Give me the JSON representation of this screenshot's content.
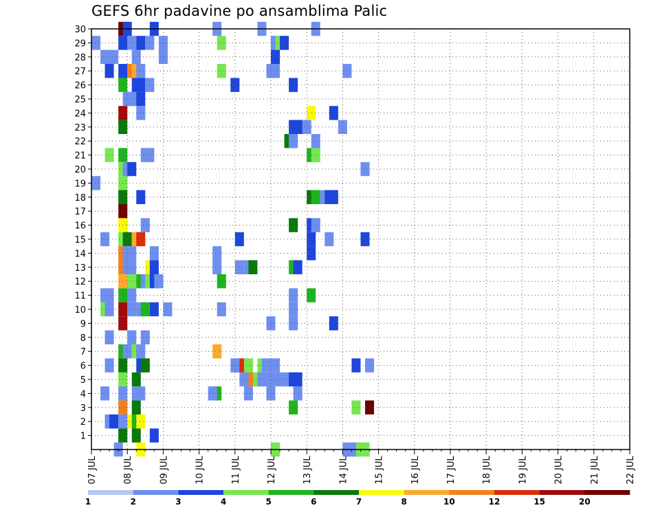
{
  "chart_data": {
    "type": "heatmap",
    "title": "GEFS 6hr padavine po ansamblima Palic",
    "xlabel": "",
    "ylabel": "",
    "x_ticks": [
      "07 JUL",
      "08 JUL",
      "09 JUL",
      "10 JUL",
      "11 JUL",
      "12 JUL",
      "13 JUL",
      "14 JUL",
      "15 JUL",
      "16 JUL",
      "17 JUL",
      "18 JUL",
      "19 JUL",
      "20 JUL",
      "21 JUL",
      "22 JUL"
    ],
    "y_ticks": [
      1,
      2,
      3,
      4,
      5,
      6,
      7,
      8,
      9,
      10,
      11,
      12,
      13,
      14,
      15,
      16,
      17,
      18,
      19,
      20,
      21,
      22,
      23,
      24,
      25,
      26,
      27,
      28,
      29,
      30
    ],
    "x_unit": "6-hour step (4 steps per day, step 0 = 07 JUL 00Z)",
    "y_unit": "ensemble member",
    "grid": true,
    "colorbar": {
      "labels": [
        "1",
        "2",
        "3",
        "4",
        "5",
        "6",
        "7",
        "8",
        "10",
        "12",
        "15",
        "20"
      ],
      "colors": [
        "#b4c8f5",
        "#6e8ff0",
        "#1e46dc",
        "#78e650",
        "#1eb41e",
        "#0a780a",
        "#fafa0a",
        "#faaa2d",
        "#f0821e",
        "#dc2d0a",
        "#a00a0a",
        "#6e0000"
      ]
    },
    "cells": [
      [
        0.5,
        29,
        1
      ],
      [
        0.5,
        19,
        1
      ],
      [
        1.5,
        28,
        1
      ],
      [
        1.5,
        15,
        1
      ],
      [
        1.5,
        11,
        1
      ],
      [
        1.5,
        10,
        3
      ],
      [
        1.5,
        4,
        1
      ],
      [
        2,
        27,
        2
      ],
      [
        2,
        21,
        3
      ],
      [
        2,
        11,
        1
      ],
      [
        2,
        10,
        1
      ],
      [
        2,
        8,
        1
      ],
      [
        2,
        6,
        1
      ],
      [
        2,
        2,
        1
      ],
      [
        2.5,
        28,
        1
      ],
      [
        2.5,
        2,
        2
      ],
      [
        3,
        0,
        1
      ],
      [
        3.5,
        30,
        11
      ],
      [
        3.5,
        29,
        2
      ],
      [
        3.5,
        27,
        2
      ],
      [
        3.5,
        26,
        4
      ],
      [
        3.5,
        24,
        10
      ],
      [
        3.5,
        23,
        5
      ],
      [
        3.5,
        21,
        4
      ],
      [
        3.5,
        20,
        3
      ],
      [
        3.5,
        19,
        3
      ],
      [
        3.5,
        18,
        5
      ],
      [
        3.5,
        17,
        11
      ],
      [
        3.5,
        16,
        6
      ],
      [
        3.5,
        15,
        3
      ],
      [
        3.5,
        14,
        8
      ],
      [
        3.5,
        13,
        8
      ],
      [
        3.5,
        12,
        7
      ],
      [
        3.5,
        11,
        4
      ],
      [
        3.5,
        10,
        10
      ],
      [
        3.5,
        9,
        10
      ],
      [
        3.5,
        7,
        4
      ],
      [
        3.5,
        6,
        5
      ],
      [
        3.5,
        5,
        3
      ],
      [
        3.5,
        4,
        1
      ],
      [
        3.5,
        3,
        8
      ],
      [
        3.5,
        2,
        1
      ],
      [
        3.5,
        1,
        5
      ],
      [
        4,
        30,
        2
      ],
      [
        4,
        25,
        1
      ],
      [
        4,
        20,
        1
      ],
      [
        4,
        15,
        5
      ],
      [
        4,
        14,
        1
      ],
      [
        4,
        13,
        1
      ],
      [
        4,
        7,
        1
      ],
      [
        4.5,
        29,
        1
      ],
      [
        4.5,
        27,
        8
      ],
      [
        4.5,
        25,
        1
      ],
      [
        4.5,
        20,
        2
      ],
      [
        4.5,
        14,
        1
      ],
      [
        4.5,
        13,
        1
      ],
      [
        4.5,
        12,
        3
      ],
      [
        4.5,
        11,
        1
      ],
      [
        4.5,
        10,
        1
      ],
      [
        4.5,
        8,
        1
      ],
      [
        4.5,
        2,
        6
      ],
      [
        5,
        28,
        1
      ],
      [
        5,
        27,
        7
      ],
      [
        5,
        26,
        2
      ],
      [
        5,
        25,
        1
      ],
      [
        5,
        15,
        7
      ],
      [
        5,
        7,
        3
      ],
      [
        5,
        5,
        5
      ],
      [
        5,
        4,
        1
      ],
      [
        5,
        3,
        5
      ],
      [
        5,
        2,
        4
      ],
      [
        5,
        1,
        5
      ],
      [
        5.5,
        29,
        2
      ],
      [
        5.5,
        27,
        1
      ],
      [
        5.5,
        26,
        2
      ],
      [
        5.5,
        25,
        2
      ],
      [
        5.5,
        24,
        1
      ],
      [
        5.5,
        18,
        2
      ],
      [
        5.5,
        15,
        9
      ],
      [
        5.5,
        12,
        4
      ],
      [
        5.5,
        10,
        1
      ],
      [
        5.5,
        7,
        1
      ],
      [
        5.5,
        6,
        2
      ],
      [
        5.5,
        4,
        1
      ],
      [
        5.5,
        2,
        6
      ],
      [
        5.5,
        0,
        6
      ],
      [
        6,
        21,
        1
      ],
      [
        6,
        16,
        1
      ],
      [
        6,
        12,
        1
      ],
      [
        6,
        10,
        4
      ],
      [
        6,
        8,
        1
      ],
      [
        6,
        6,
        5
      ],
      [
        6.5,
        29,
        1
      ],
      [
        6.5,
        26,
        1
      ],
      [
        6.5,
        21,
        1
      ],
      [
        6.5,
        13,
        6
      ],
      [
        6.5,
        12,
        3
      ],
      [
        7,
        14,
        1
      ],
      [
        7,
        13,
        2
      ],
      [
        7,
        12,
        2
      ],
      [
        7,
        10,
        2
      ],
      [
        7,
        1,
        2
      ],
      [
        7,
        30,
        2
      ],
      [
        7.5,
        12,
        1
      ],
      [
        8,
        29,
        1
      ],
      [
        8,
        28,
        1
      ],
      [
        8.5,
        10,
        1
      ],
      [
        14,
        30,
        1
      ],
      [
        14,
        14,
        1
      ],
      [
        14,
        13,
        1
      ],
      [
        14,
        7,
        7
      ],
      [
        14,
        4,
        4
      ],
      [
        13.5,
        4,
        1
      ],
      [
        14.5,
        29,
        3
      ],
      [
        14.5,
        27,
        3
      ],
      [
        14.5,
        12,
        4
      ],
      [
        14.5,
        10,
        1
      ],
      [
        16,
        26,
        2
      ],
      [
        16,
        6,
        1
      ],
      [
        16.5,
        15,
        2
      ],
      [
        16.5,
        13,
        1
      ],
      [
        16.5,
        6,
        1
      ],
      [
        17,
        6,
        9
      ],
      [
        17,
        5,
        1
      ],
      [
        17.5,
        13,
        1
      ],
      [
        17.5,
        6,
        3
      ],
      [
        17.5,
        4,
        1
      ],
      [
        17.5,
        5,
        1
      ],
      [
        18,
        13,
        5
      ],
      [
        18,
        5,
        8
      ],
      [
        18.5,
        5,
        3
      ],
      [
        19,
        30,
        1
      ],
      [
        19,
        6,
        3
      ],
      [
        19,
        5,
        1
      ],
      [
        19.5,
        6,
        1
      ],
      [
        20,
        27,
        1
      ],
      [
        20,
        9,
        1
      ],
      [
        20,
        5,
        1
      ],
      [
        20,
        4,
        1
      ],
      [
        20.5,
        29,
        1
      ],
      [
        20.5,
        28,
        2
      ],
      [
        20.5,
        27,
        1
      ],
      [
        20.5,
        6,
        1
      ],
      [
        20.5,
        5,
        1
      ],
      [
        20.5,
        0,
        3
      ],
      [
        21,
        29,
        3
      ],
      [
        21.5,
        29,
        2
      ],
      [
        21.5,
        5,
        1
      ],
      [
        22,
        22,
        5
      ],
      [
        22,
        5,
        1
      ],
      [
        22.5,
        26,
        2
      ],
      [
        22.5,
        23,
        2
      ],
      [
        22.5,
        22,
        1
      ],
      [
        22.5,
        16,
        5
      ],
      [
        22.5,
        13,
        4
      ],
      [
        22.5,
        11,
        1
      ],
      [
        22.5,
        10,
        1
      ],
      [
        22.5,
        9,
        1
      ],
      [
        22.5,
        5,
        2
      ],
      [
        22.5,
        3,
        4
      ],
      [
        23,
        23,
        2
      ],
      [
        23,
        13,
        2
      ],
      [
        23,
        4,
        1
      ],
      [
        23,
        5,
        2
      ],
      [
        23.5,
        23,
        2
      ],
      [
        24,
        23,
        1
      ],
      [
        24.5,
        24,
        6
      ],
      [
        24.5,
        21,
        4
      ],
      [
        24.5,
        18,
        5
      ],
      [
        24.5,
        16,
        2
      ],
      [
        24.5,
        15,
        2
      ],
      [
        24.5,
        14,
        2
      ],
      [
        24.5,
        11,
        4
      ],
      [
        25,
        30,
        1
      ],
      [
        25,
        22,
        1
      ],
      [
        25,
        21,
        3
      ],
      [
        25,
        18,
        4
      ],
      [
        25,
        16,
        1
      ],
      [
        26,
        18,
        1
      ],
      [
        26.5,
        18,
        2
      ],
      [
        26.5,
        15,
        1
      ],
      [
        27,
        24,
        2
      ],
      [
        27,
        18,
        2
      ],
      [
        27,
        9,
        2
      ],
      [
        28,
        23,
        1
      ],
      [
        28.5,
        27,
        1
      ],
      [
        28.5,
        0,
        1
      ],
      [
        29,
        0,
        1
      ],
      [
        29.5,
        6,
        2
      ],
      [
        29.5,
        3,
        3
      ],
      [
        29.5,
        0,
        1
      ],
      [
        30,
        0,
        3
      ],
      [
        30.5,
        20,
        1
      ],
      [
        30.5,
        15,
        2
      ],
      [
        30.5,
        0,
        3
      ],
      [
        31,
        6,
        1
      ],
      [
        31,
        3,
        11
      ]
    ]
  }
}
